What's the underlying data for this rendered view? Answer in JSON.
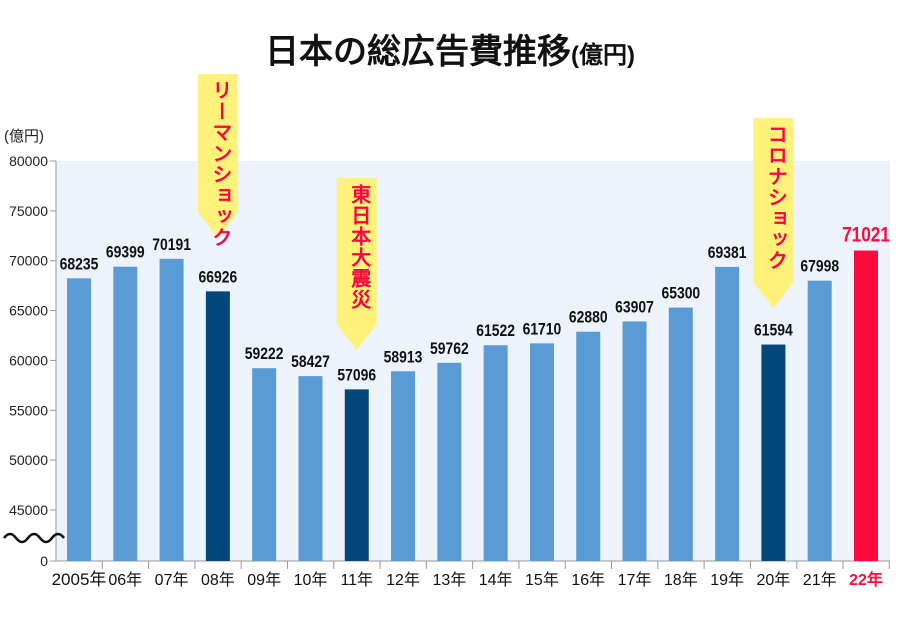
{
  "chart_data": {
    "type": "bar",
    "title": "日本の総広告費推移",
    "title_unit": "(億円)",
    "ylabel": "(億円)",
    "ylim": [
      0,
      80000
    ],
    "axis_break": [
      0,
      45000
    ],
    "yticks": [
      0,
      45000,
      50000,
      55000,
      60000,
      65000,
      70000,
      75000,
      80000
    ],
    "categories": [
      "2005年",
      "06年",
      "07年",
      "08年",
      "09年",
      "10年",
      "11年",
      "12年",
      "13年",
      "14年",
      "15年",
      "16年",
      "17年",
      "18年",
      "19年",
      "20年",
      "21年",
      "22年"
    ],
    "values": [
      68235,
      69399,
      70191,
      66926,
      59222,
      58427,
      57096,
      58913,
      59762,
      61522,
      61710,
      62880,
      63907,
      65300,
      69381,
      61594,
      67998,
      71021
    ],
    "highlight_dark": [
      "08年",
      "11年",
      "20年"
    ],
    "highlight_latest": "22年",
    "annotations": [
      {
        "category": "08年",
        "text": "リーマンショック"
      },
      {
        "category": "11年",
        "text": "東日本大震災"
      },
      {
        "category": "20年",
        "text": "コロナショック"
      }
    ],
    "grid": false,
    "colors": {
      "bar": "#5b9bd5",
      "dark": "#04477a",
      "latest": "#ff0a3c",
      "plot_bg": "#ecf3fb",
      "callout": "#fff27a",
      "callout_text": "#ff0040"
    }
  }
}
